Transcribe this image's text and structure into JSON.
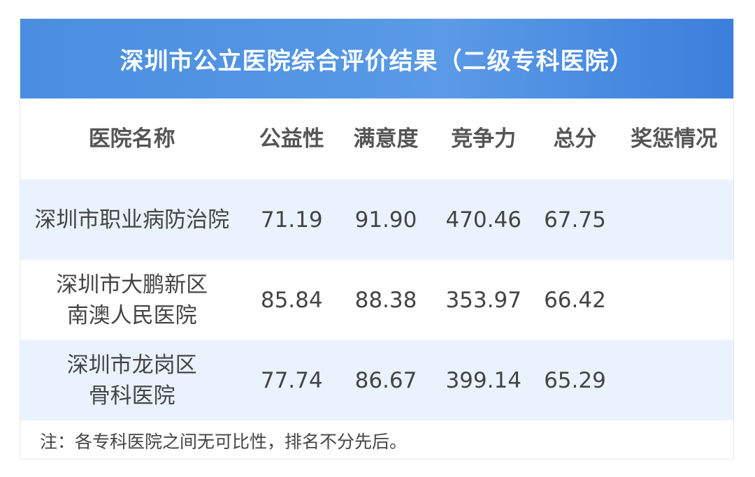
{
  "title": "深圳市公立医院综合评价结果（二级专科医院）",
  "columns": [
    "医院名称",
    "公益性",
    "满意度",
    "竞争力",
    "总分",
    "奖惩情况"
  ],
  "rows": [
    {
      "name": [
        "深圳市职业病防治院"
      ],
      "values": [
        "71.19",
        "91.90",
        "470.46",
        "67.75"
      ],
      "award": ""
    },
    {
      "name": [
        "深圳市大鹏新区",
        "南澳人民医院"
      ],
      "values": [
        "85.84",
        "88.38",
        "353.97",
        "66.42"
      ],
      "award": ""
    },
    {
      "name": [
        "深圳市龙岗区",
        "骨科医院"
      ],
      "values": [
        "77.74",
        "86.67",
        "399.14",
        "65.29"
      ],
      "award": ""
    }
  ],
  "note": "注：各专科医院之间无可比性，排名不分先后。",
  "colors": {
    "header": "#4a8ee0",
    "alt_row": "#eaf3fd"
  }
}
